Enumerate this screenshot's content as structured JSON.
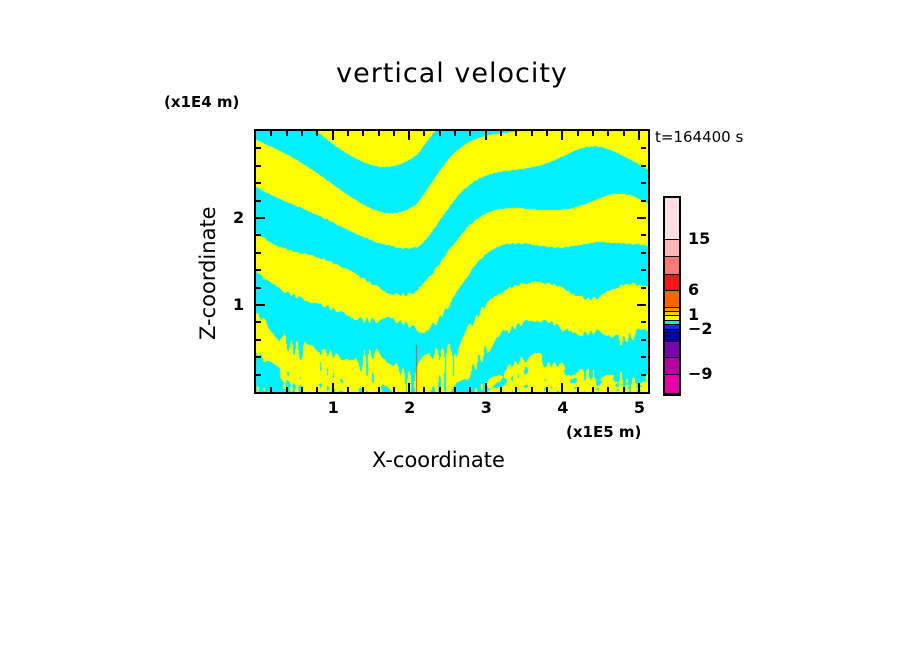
{
  "chart_data": {
    "type": "heatmap",
    "title": "vertical velocity",
    "xlabel": "X-coordinate",
    "ylabel": "Z-coordinate",
    "x_unit": "(x1E5 m)",
    "y_unit": "(x1E4 m)",
    "time_label": "t=164400 s",
    "xlim": [
      0,
      5.12
    ],
    "ylim": [
      0,
      3.0
    ],
    "xticks": [
      "1",
      "2",
      "3",
      "4",
      "5"
    ],
    "xtick_values": [
      1,
      2,
      3,
      4,
      5
    ],
    "yticks": [
      "1",
      "2"
    ],
    "ytick_values": [
      1,
      2
    ],
    "colorbar": {
      "colors": [
        "#ffe0e0",
        "#ffb6b6",
        "#ff7878",
        "#ff1414",
        "#ff6400",
        "#ff9600",
        "#ffc800",
        "#ffff00",
        "#00f0ff",
        "#0030ff",
        "#0000a8",
        "#7800aa",
        "#b400a4",
        "#e600aa"
      ],
      "labels": [
        "15",
        "6",
        "1",
        "−2",
        "−9"
      ],
      "label_boundary_index": [
        1,
        4,
        7,
        10,
        13
      ]
    },
    "field_note_colors": {
      "positive": "#ffff00",
      "negative": "#00f0ff",
      "strong": "#ff1414"
    }
  }
}
